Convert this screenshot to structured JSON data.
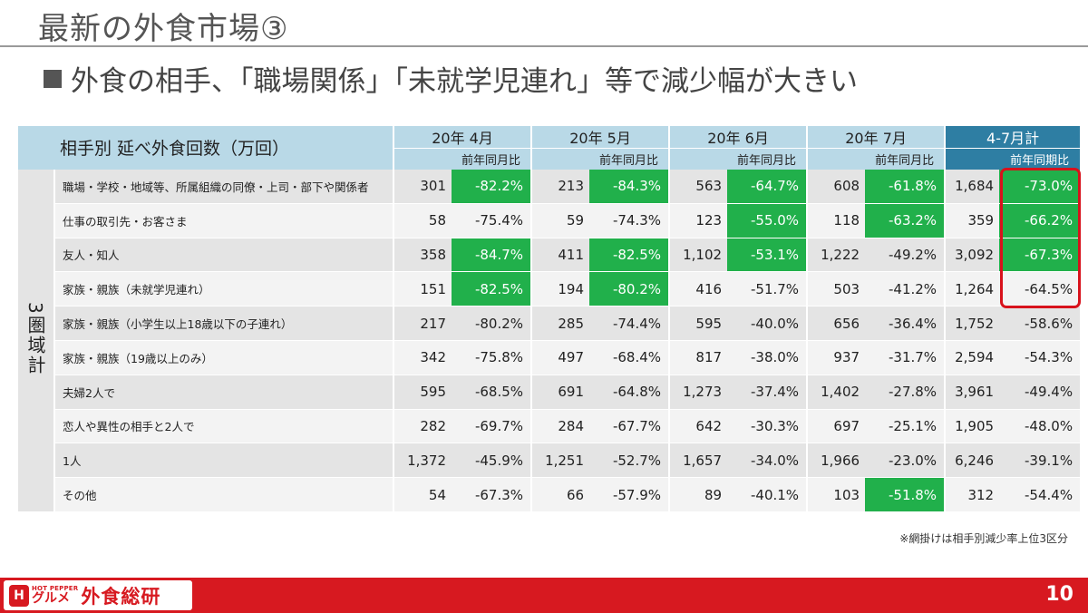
{
  "slide": {
    "title": "最新の外食市場③",
    "subtitle": "外食の相手、「職場関係」「未就学児連れ」等で減少幅が大きい"
  },
  "table": {
    "title": "相手別 延べ外食回数（万回）",
    "side_label": "3圏域計",
    "periods": [
      {
        "label": "20年 4月",
        "yoy_label": "前年同月比"
      },
      {
        "label": "20年 5月",
        "yoy_label": "前年同月比"
      },
      {
        "label": "20年 6月",
        "yoy_label": "前年同月比"
      },
      {
        "label": "20年 7月",
        "yoy_label": "前年同月比"
      },
      {
        "label": "4-7月計",
        "yoy_label": "前年同期比"
      }
    ],
    "rows": [
      {
        "label": "職場・学校・地域等、所属組織の同僚・上司・部下や関係者",
        "cells": [
          [
            "301",
            "-82.2%"
          ],
          [
            "213",
            "-84.3%"
          ],
          [
            "563",
            "-64.7%"
          ],
          [
            "608",
            "-61.8%"
          ],
          [
            "1,684",
            "-73.0%"
          ]
        ],
        "highlight": [
          true,
          true,
          true,
          true,
          true
        ]
      },
      {
        "label": "仕事の取引先・お客さま",
        "cells": [
          [
            "58",
            "-75.4%"
          ],
          [
            "59",
            "-74.3%"
          ],
          [
            "123",
            "-55.0%"
          ],
          [
            "118",
            "-63.2%"
          ],
          [
            "359",
            "-66.2%"
          ]
        ],
        "highlight": [
          false,
          false,
          true,
          true,
          true
        ]
      },
      {
        "label": "友人・知人",
        "cells": [
          [
            "358",
            "-84.7%"
          ],
          [
            "411",
            "-82.5%"
          ],
          [
            "1,102",
            "-53.1%"
          ],
          [
            "1,222",
            "-49.2%"
          ],
          [
            "3,092",
            "-67.3%"
          ]
        ],
        "highlight": [
          true,
          true,
          true,
          false,
          true
        ]
      },
      {
        "label": "家族・親族（未就学児連れ）",
        "cells": [
          [
            "151",
            "-82.5%"
          ],
          [
            "194",
            "-80.2%"
          ],
          [
            "416",
            "-51.7%"
          ],
          [
            "503",
            "-41.2%"
          ],
          [
            "1,264",
            "-64.5%"
          ]
        ],
        "highlight": [
          true,
          true,
          false,
          false,
          false
        ]
      },
      {
        "label": "家族・親族（小学生以上18歳以下の子連れ）",
        "cells": [
          [
            "217",
            "-80.2%"
          ],
          [
            "285",
            "-74.4%"
          ],
          [
            "595",
            "-40.0%"
          ],
          [
            "656",
            "-36.4%"
          ],
          [
            "1,752",
            "-58.6%"
          ]
        ],
        "highlight": [
          false,
          false,
          false,
          false,
          false
        ]
      },
      {
        "label": "家族・親族（19歳以上のみ）",
        "cells": [
          [
            "342",
            "-75.8%"
          ],
          [
            "497",
            "-68.4%"
          ],
          [
            "817",
            "-38.0%"
          ],
          [
            "937",
            "-31.7%"
          ],
          [
            "2,594",
            "-54.3%"
          ]
        ],
        "highlight": [
          false,
          false,
          false,
          false,
          false
        ]
      },
      {
        "label": "夫婦2人で",
        "cells": [
          [
            "595",
            "-68.5%"
          ],
          [
            "691",
            "-64.8%"
          ],
          [
            "1,273",
            "-37.4%"
          ],
          [
            "1,402",
            "-27.8%"
          ],
          [
            "3,961",
            "-49.4%"
          ]
        ],
        "highlight": [
          false,
          false,
          false,
          false,
          false
        ]
      },
      {
        "label": "恋人や異性の相手と2人で",
        "cells": [
          [
            "282",
            "-69.7%"
          ],
          [
            "284",
            "-67.7%"
          ],
          [
            "642",
            "-30.3%"
          ],
          [
            "697",
            "-25.1%"
          ],
          [
            "1,905",
            "-48.0%"
          ]
        ],
        "highlight": [
          false,
          false,
          false,
          false,
          false
        ]
      },
      {
        "label": "1人",
        "cells": [
          [
            "1,372",
            "-45.9%"
          ],
          [
            "1,251",
            "-52.7%"
          ],
          [
            "1,657",
            "-34.0%"
          ],
          [
            "1,966",
            "-23.0%"
          ],
          [
            "6,246",
            "-39.1%"
          ]
        ],
        "highlight": [
          false,
          false,
          false,
          false,
          false
        ]
      },
      {
        "label": "その他",
        "cells": [
          [
            "54",
            "-67.3%"
          ],
          [
            "66",
            "-57.9%"
          ],
          [
            "89",
            "-40.1%"
          ],
          [
            "103",
            "-51.8%"
          ],
          [
            "312",
            "-54.4%"
          ]
        ],
        "highlight": [
          false,
          false,
          false,
          true,
          false
        ]
      }
    ]
  },
  "footnote": "※網掛けは相手別減少率上位3区分",
  "footer": {
    "logo_small": "HOT PEPPER",
    "logo_gurume": "グルメ",
    "logo_main": "外食総研",
    "page_number": "10"
  },
  "colors": {
    "highlight_green": "#21b04b",
    "header_blue": "#b9d9e7",
    "total_header_blue": "#2e7ea3",
    "emphasis_red": "#d8121c",
    "footer_red": "#d71920"
  },
  "icons": {
    "bullet": "square-bullet-icon",
    "logo_mark": "hot-pepper-h-logo-icon"
  }
}
